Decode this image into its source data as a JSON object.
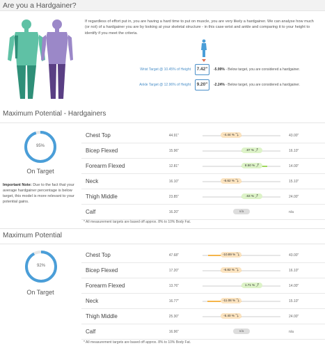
{
  "hardgainer": {
    "title": "Are you a Hardgainer?",
    "intro": "If regardless of effort put in, you are having a hard time to put on muscle, you are very likely a hardgainer. We can analyse how much (or not) of a hardgainer you are by looking at your skeletal structure - in this case wrist and ankle and comparing it to your height to identify if you meet the criteria.",
    "targets": [
      {
        "label": "Wrist Target @ 10.45% of Height",
        "value": "7.42\"",
        "pct": "-5.99%",
        "note": " - Below target, you are considered a hardgainer."
      },
      {
        "label": "Ankle Target @ 12.96% of Height",
        "value": "9.20\"",
        "pct": "-2.24%",
        "note": " - Below target, you are considered a hardgainer."
      }
    ]
  },
  "sections": [
    {
      "title": "Maximum Potential - Hardgainers",
      "donut_label": "95%",
      "donut_value": 95,
      "status": "On Target",
      "important_label": "Important Note:",
      "important_text": " Due to the fact that your average hardgainer percentage is below target, this model is more relevant to your potential gains.",
      "rows": [
        {
          "name": "Chest Top",
          "value": "44.91\"",
          "pct": "-4.44 %",
          "pct_value": -4.44,
          "kind": "neg",
          "target": "43.00\""
        },
        {
          "name": "Bicep Flexed",
          "value": "15.96\"",
          "pct": ".87 %",
          "pct_value": 0.87,
          "kind": "pos",
          "target": "16.10\""
        },
        {
          "name": "Forearm Flexed",
          "value": "12.81\"",
          "pct": "8.50 %",
          "pct_value": 8.5,
          "kind": "pos",
          "target": "14.00\""
        },
        {
          "name": "Neck",
          "value": "16.10\"",
          "pct": "-6.62 %",
          "pct_value": -6.62,
          "kind": "neg",
          "target": "15.10\""
        },
        {
          "name": "Thigh Middle",
          "value": "23.85\"",
          "pct": ".63 %",
          "pct_value": 0.63,
          "kind": "pos",
          "target": "24.00\""
        },
        {
          "name": "Calf",
          "value": "16.20\"",
          "pct": "n/a",
          "pct_value": null,
          "kind": "na",
          "target": "n/a"
        }
      ],
      "footnote": "* All measurement targets are based off approx. 8% to 10% Body Fat."
    },
    {
      "title": "Maximum Potential",
      "donut_label": "92%",
      "donut_value": 92,
      "status": "On Target",
      "rows": [
        {
          "name": "Chest Top",
          "value": "47.68\"",
          "pct": "-10.89 %",
          "pct_value": -10.89,
          "kind": "neg",
          "target": "43.00\""
        },
        {
          "name": "Bicep Flexed",
          "value": "17.20\"",
          "pct": "-6.82 %",
          "pct_value": -6.82,
          "kind": "neg",
          "target": "16.10\""
        },
        {
          "name": "Forearm Flexed",
          "value": "13.76\"",
          "pct": "1.71 %",
          "pct_value": 1.71,
          "kind": "pos",
          "target": "14.00\""
        },
        {
          "name": "Neck",
          "value": "16.77\"",
          "pct": "-11.08 %",
          "pct_value": -11.08,
          "kind": "neg",
          "target": "15.10\""
        },
        {
          "name": "Thigh Middle",
          "value": "25.30\"",
          "pct": "-5.40 %",
          "pct_value": -5.4,
          "kind": "neg",
          "target": "24.00\""
        },
        {
          "name": "Calf",
          "value": "16.96\"",
          "pct": "n/a",
          "pct_value": null,
          "kind": "na",
          "target": "n/a"
        }
      ],
      "footnote": "* All measurement targets are based off approx. 8% to 10% Body Fat."
    }
  ],
  "colors": {
    "accent": "#4a9ed8",
    "negative": "#f5b54a",
    "positive": "#9fd85a",
    "figure_green": "#5fc1a5",
    "figure_purple": "#8e7ab9"
  }
}
